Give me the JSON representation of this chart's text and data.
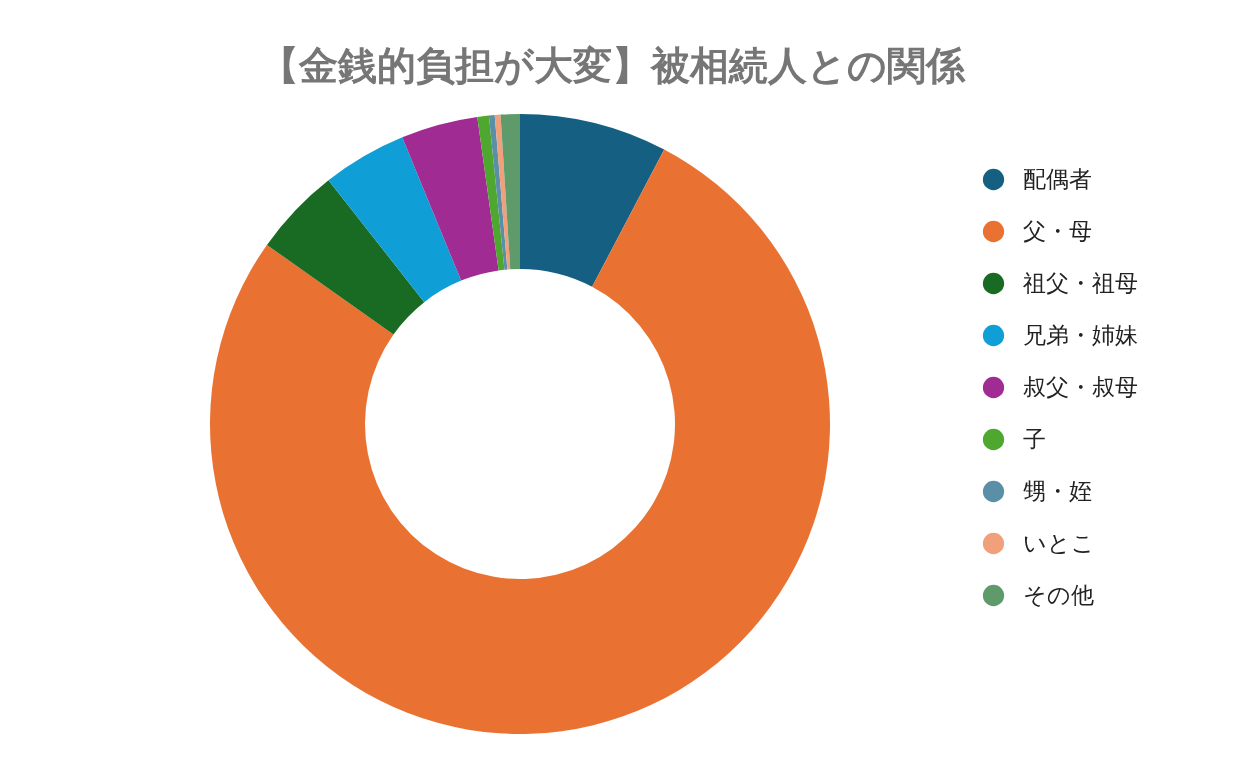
{
  "chart_data": {
    "type": "donut",
    "title": "【金銭的負担が大変】被相続人との関係",
    "categories": [
      "配偶者",
      "父・母",
      "祖父・祖母",
      "兄弟・姉妹",
      "叔父・叔母",
      "子",
      "甥・姪",
      "いとこ",
      "その他"
    ],
    "values": [
      7.7,
      77.1,
      4.6,
      4.4,
      4.0,
      0.6,
      0.3,
      0.3,
      1.0
    ],
    "colors": [
      "#156082",
      "#e97132",
      "#196b24",
      "#0f9ed5",
      "#a02b93",
      "#4ea72e",
      "#5b8fa8",
      "#f0a07a",
      "#5f9a6b"
    ],
    "legend": "right"
  }
}
